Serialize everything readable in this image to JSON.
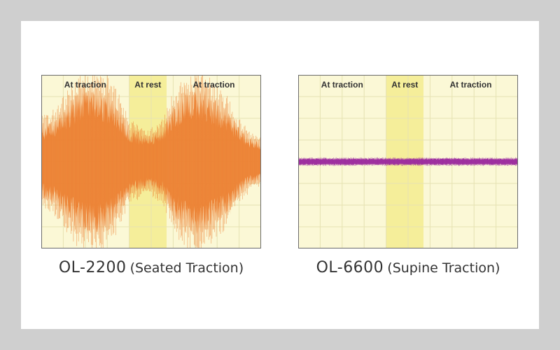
{
  "page": {
    "background": "#cfcfcf",
    "card_background": "#ffffff"
  },
  "chart_data": [
    {
      "type": "area",
      "chart_kind": "oscilloscope-waveform",
      "caption_model": "OL-2200",
      "caption_desc": "(Seated Traction)",
      "phase_labels": [
        "At traction",
        "At rest",
        "At traction"
      ],
      "phase_spans": [
        [
          0,
          0.4
        ],
        [
          0.4,
          0.57
        ],
        [
          0.57,
          1.0
        ]
      ],
      "rest_band": [
        0.4,
        0.57
      ],
      "signal_color": "#ec8234",
      "plot_background": "#fbf8d6",
      "rest_background": "#f5ee9a",
      "grid": true,
      "grid_divisions": [
        10,
        8
      ],
      "baseline": 0.5,
      "envelope": {
        "x": [
          0,
          0.05,
          0.1,
          0.15,
          0.2,
          0.25,
          0.3,
          0.35,
          0.4,
          0.45,
          0.5,
          0.55,
          0.6,
          0.65,
          0.7,
          0.75,
          0.8,
          0.85,
          0.9,
          0.95,
          1.0
        ],
        "amplitude": [
          0.22,
          0.24,
          0.31,
          0.38,
          0.42,
          0.43,
          0.4,
          0.32,
          0.2,
          0.17,
          0.16,
          0.2,
          0.32,
          0.4,
          0.43,
          0.41,
          0.36,
          0.3,
          0.2,
          0.14,
          0.12
        ]
      },
      "xlabel": "",
      "ylabel": ""
    },
    {
      "type": "area",
      "chart_kind": "oscilloscope-waveform",
      "caption_model": "OL-6600",
      "caption_desc": "(Supine Traction)",
      "phase_labels": [
        "At traction",
        "At rest",
        "At traction"
      ],
      "phase_spans": [
        [
          0,
          0.4
        ],
        [
          0.4,
          0.57
        ],
        [
          0.57,
          1.0
        ]
      ],
      "rest_band": [
        0.4,
        0.57
      ],
      "signal_color": "#9b2a9e",
      "plot_background": "#fbf8d6",
      "rest_background": "#f5ee9a",
      "grid": true,
      "grid_divisions": [
        10,
        8
      ],
      "baseline": 0.5,
      "envelope": {
        "x": [
          0,
          0.25,
          0.5,
          0.75,
          1.0
        ],
        "amplitude": [
          0.02,
          0.02,
          0.02,
          0.02,
          0.02
        ]
      },
      "xlabel": "",
      "ylabel": ""
    }
  ]
}
